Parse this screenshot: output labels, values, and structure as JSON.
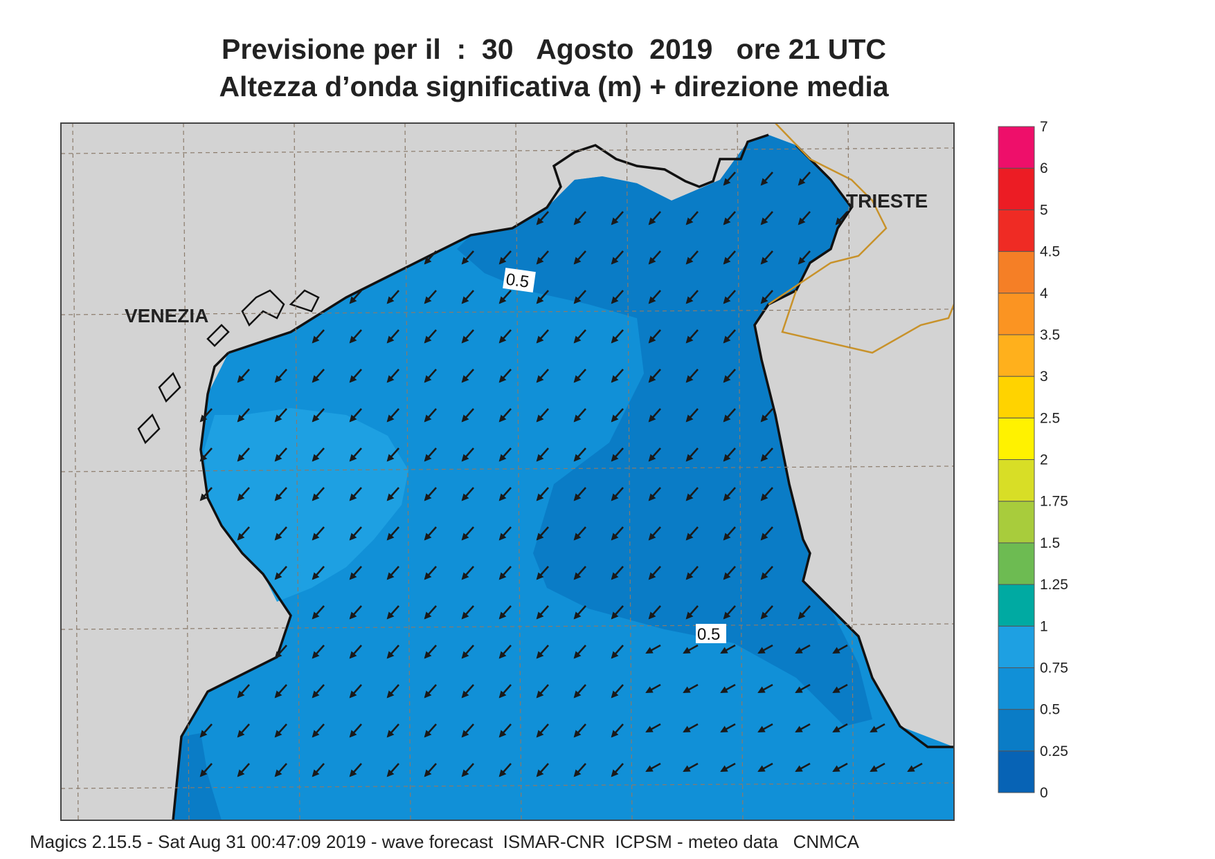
{
  "title": {
    "line1": "Previsione per il  :  30   Agosto  2019   ore 21 UTC",
    "line2": "Altezza d’onda significativa (m) + direzione media"
  },
  "footer": "Magics 2.15.5 - Sat Aug 31 00:47:09 2019 - wave forecast  ISMAR-CNR  ICPSM - meteo data   CNMCA",
  "map": {
    "cities": [
      {
        "name": "VENEZIA"
      },
      {
        "name": "TRIESTE"
      }
    ],
    "contour_labels": [
      "0.5",
      "0.5"
    ],
    "colors": {
      "land": "#d3d3d3",
      "sea_025_05": "#0a7cc6",
      "sea_05_075": "#1190d7",
      "sea_075_1": "#1ea0e2",
      "coast": "#111111",
      "border": "#c8922a",
      "grid": "#8a7a6a"
    },
    "arrow_direction": "southwest"
  },
  "colorbar": {
    "ticks": [
      "0",
      "0.25",
      "0.5",
      "0.75",
      "1",
      "1.25",
      "1.5",
      "1.75",
      "2",
      "2.5",
      "3",
      "3.5",
      "4",
      "4.5",
      "5",
      "6",
      "7"
    ],
    "colors": [
      "#0763b5",
      "#0a7cc6",
      "#1190d7",
      "#1ea0e2",
      "#00aaa2",
      "#6dbb52",
      "#a8cc3c",
      "#d8de26",
      "#fff200",
      "#ffd300",
      "#ffb01c",
      "#fb9422",
      "#f57f26",
      "#ef2b24",
      "#ec1c24",
      "#ee0f6a"
    ]
  }
}
